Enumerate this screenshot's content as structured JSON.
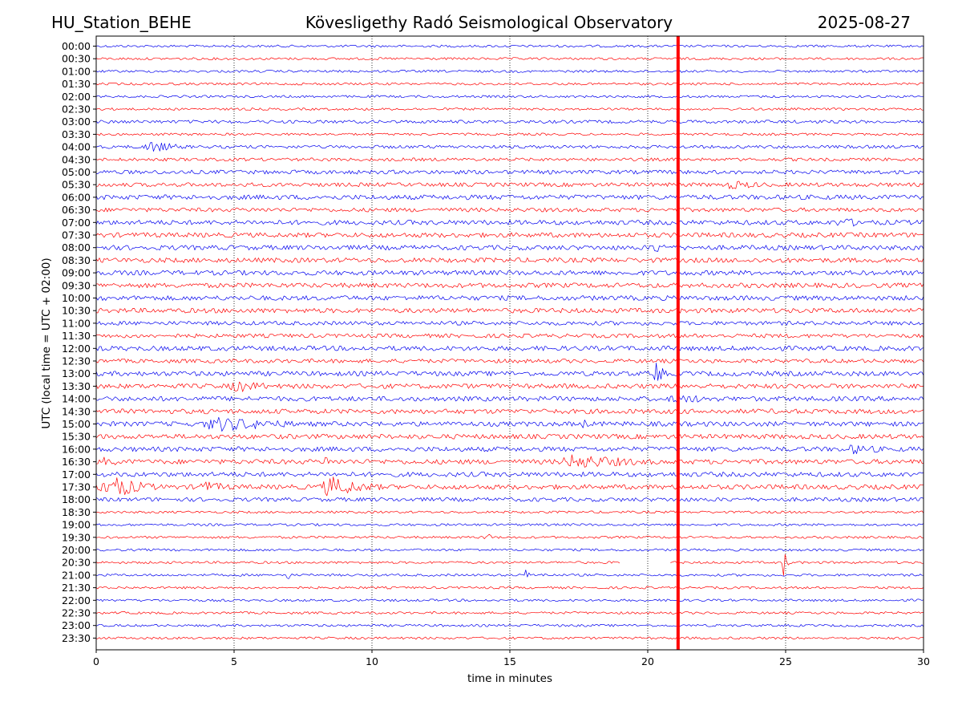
{
  "header": {
    "station": "HU_Station_BEHE",
    "observatory": "Kövesligethy Radó Seismological Observatory",
    "date": "2025-08-27"
  },
  "chart_data": {
    "type": "line",
    "title": "Kövesligethy Radó Seismological Observatory",
    "xlabel": "time in minutes",
    "ylabel": "UTC (local time = UTC + 02:00)",
    "xlim": [
      0,
      30
    ],
    "x_ticks": [
      "0",
      "5",
      "10",
      "15",
      "20",
      "25",
      "30"
    ],
    "y_ticks": [
      "00:00",
      "00:30",
      "01:00",
      "01:30",
      "02:00",
      "02:30",
      "03:00",
      "03:30",
      "04:00",
      "04:30",
      "05:00",
      "05:30",
      "06:00",
      "06:30",
      "07:00",
      "07:30",
      "08:00",
      "08:30",
      "09:00",
      "09:30",
      "10:00",
      "10:30",
      "11:00",
      "11:30",
      "12:00",
      "12:30",
      "13:00",
      "13:30",
      "14:00",
      "14:30",
      "15:00",
      "15:30",
      "16:00",
      "16:30",
      "17:00",
      "17:30",
      "18:00",
      "18:30",
      "19:00",
      "19:30",
      "20:00",
      "20:30",
      "21:00",
      "21:30",
      "22:00",
      "22:30",
      "23:00",
      "23:30"
    ],
    "grid": "vertical dotted lines at each x tick",
    "series_colors": [
      "#0000ee",
      "#ff0000"
    ],
    "trace_noise_amplitude": [
      1.5,
      1.5,
      1.5,
      1.5,
      1.5,
      1.5,
      2,
      1.5,
      2,
      2,
      2.5,
      2.5,
      3,
      2.5,
      3,
      3,
      3,
      3,
      3,
      3,
      3,
      3,
      2.5,
      2.5,
      3,
      2.5,
      3,
      3,
      3,
      3,
      3,
      3,
      3,
      3,
      3,
      3,
      2.5,
      1.5,
      1.5,
      1.5,
      1.5,
      1.5,
      1.5,
      1.5,
      1.5,
      1.5,
      1.5,
      1.5
    ],
    "events": [
      {
        "row": 8,
        "start_min": 1.6,
        "end_min": 4.0,
        "amplitude": 8
      },
      {
        "row": 11,
        "start_min": 22.5,
        "end_min": 26.0,
        "amplitude": 6
      },
      {
        "row": 14,
        "start_min": 26.5,
        "end_min": 30.0,
        "amplitude": 6
      },
      {
        "row": 16,
        "start_min": 20.0,
        "end_min": 21.5,
        "amplitude": 8
      },
      {
        "row": 26,
        "start_min": 20.2,
        "end_min": 20.7,
        "amplitude": 22
      },
      {
        "row": 27,
        "start_min": 4.6,
        "end_min": 7.8,
        "amplitude": 8
      },
      {
        "row": 28,
        "start_min": 20.3,
        "end_min": 25.5,
        "amplitude": 6
      },
      {
        "row": 30,
        "start_min": 3.5,
        "end_min": 9.5,
        "amplitude": 10
      },
      {
        "row": 30,
        "start_min": 17.5,
        "end_min": 18.0,
        "amplitude": 10
      },
      {
        "row": 32,
        "start_min": 27.0,
        "end_min": 30.0,
        "amplitude": 7
      },
      {
        "row": 33,
        "start_min": 0.0,
        "end_min": 2.0,
        "amplitude": 6
      },
      {
        "row": 33,
        "start_min": 8.2,
        "end_min": 8.9,
        "amplitude": 8
      },
      {
        "row": 33,
        "start_min": 16.5,
        "end_min": 22.0,
        "amplitude": 10
      },
      {
        "row": 35,
        "start_min": 0.0,
        "end_min": 2.5,
        "amplitude": 18
      },
      {
        "row": 35,
        "start_min": 3.5,
        "end_min": 6.0,
        "amplitude": 8
      },
      {
        "row": 35,
        "start_min": 8.0,
        "end_min": 11.0,
        "amplitude": 14
      },
      {
        "row": 39,
        "start_min": 14.0,
        "end_min": 14.5,
        "amplitude": 9
      },
      {
        "row": 41,
        "start_min": 24.9,
        "end_min": 25.1,
        "amplitude": 28
      },
      {
        "row": 42,
        "start_min": 6.9,
        "end_min": 7.1,
        "amplitude": 10
      },
      {
        "row": 42,
        "start_min": 15.5,
        "end_min": 16.0,
        "amplitude": 7
      },
      {
        "row": 42,
        "start_min": 16.1,
        "end_min": 16.4,
        "amplitude": 6
      }
    ],
    "gaps": [
      {
        "row": 41,
        "start_min": 19.0,
        "end_min": 20.8
      }
    ],
    "saturated_column": {
      "x_min": 21.1,
      "color": "#ff0000"
    }
  }
}
